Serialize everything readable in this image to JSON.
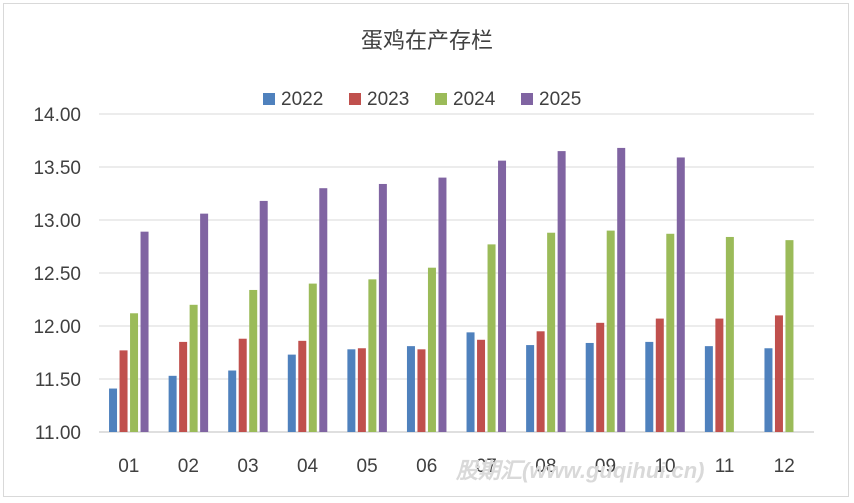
{
  "chart_data": {
    "type": "bar",
    "title": "蛋鸡在产存栏",
    "categories": [
      "01",
      "02",
      "03",
      "04",
      "05",
      "06",
      "07",
      "08",
      "09",
      "10",
      "11",
      "12"
    ],
    "series": [
      {
        "name": "2022",
        "color": "#4f81bd",
        "values": [
          11.41,
          11.53,
          11.58,
          11.73,
          11.78,
          11.81,
          11.94,
          11.82,
          11.84,
          11.85,
          11.81,
          11.79
        ]
      },
      {
        "name": "2023",
        "color": "#c0504d",
        "values": [
          11.77,
          11.85,
          11.88,
          11.86,
          11.79,
          11.78,
          11.87,
          11.95,
          12.03,
          12.07,
          12.07,
          12.1
        ]
      },
      {
        "name": "2024",
        "color": "#9bbb59",
        "values": [
          12.12,
          12.2,
          12.34,
          12.4,
          12.44,
          12.55,
          12.77,
          12.88,
          12.9,
          12.87,
          12.84,
          12.81
        ]
      },
      {
        "name": "2025",
        "color": "#8064a2",
        "values": [
          12.89,
          13.06,
          13.18,
          13.3,
          13.34,
          13.4,
          13.56,
          13.65,
          13.68,
          13.59,
          null,
          null
        ]
      }
    ],
    "ylim": [
      11.0,
      14.0
    ],
    "yticks": [
      "11.00",
      "11.50",
      "12.00",
      "12.50",
      "13.00",
      "13.50",
      "14.00"
    ],
    "grid": true,
    "legend_position": "top"
  },
  "watermark": "股期汇(www.guqihui.cn)"
}
